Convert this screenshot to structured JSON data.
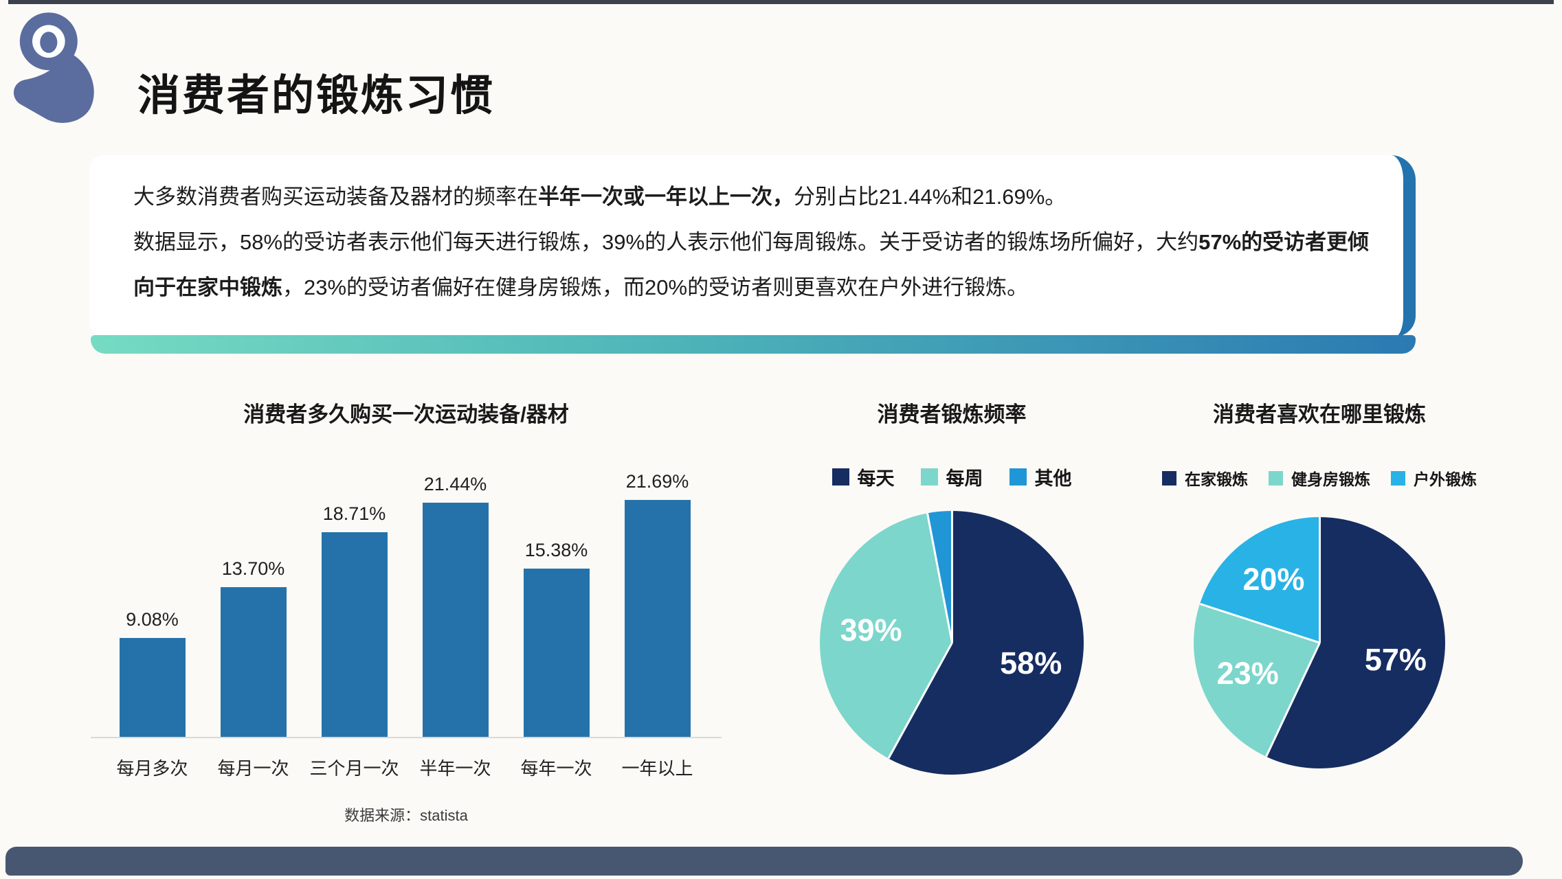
{
  "page": {
    "title": "消费者的锻炼习惯"
  },
  "summary": {
    "paragraphs": [
      {
        "segments": [
          {
            "t": "大多数消费者购买运动装备及器材的频率在",
            "b": 0
          },
          {
            "t": "半年一次或一年以上一次，",
            "b": 1
          },
          {
            "t": "分别占比21.44%和21.69%。",
            "b": 0
          }
        ]
      },
      {
        "segments": [
          {
            "t": "数据显示，58%的受访者表示他们每天进行锻炼，39%的人表示他们每周锻炼。关于受访者的锻炼场所偏好，大约",
            "b": 0
          },
          {
            "t": "57%的受访者更倾向于在家中锻炼",
            "b": 1
          },
          {
            "t": "，23%的受访者偏好在健身房锻炼，而20%的受访者则更喜欢在户外进行锻炼。",
            "b": 0
          }
        ]
      }
    ]
  },
  "chart_data": [
    {
      "type": "bar",
      "title": "消费者多久购买一次运动装备/器材",
      "categories": [
        "每月多次",
        "每月一次",
        "三个月一次",
        "半年一次",
        "每年一次",
        "一年以上"
      ],
      "values": [
        9.08,
        13.7,
        18.71,
        21.44,
        15.38,
        21.69
      ],
      "labels": [
        "9.08%",
        "13.70%",
        "18.71%",
        "21.44%",
        "15.38%",
        "21.69%"
      ],
      "ylim": [
        0,
        22
      ],
      "bar_color": "#2572aa",
      "grid": "off",
      "source": "数据来源：statista"
    },
    {
      "type": "pie",
      "title": "消费者锻炼频率",
      "legend_position": "top",
      "slices": [
        {
          "name": "每天",
          "value": 58,
          "label": "58%",
          "color": "#162d62"
        },
        {
          "name": "每周",
          "value": 39,
          "label": "39%",
          "color": "#7cd6cb"
        },
        {
          "name": "其他",
          "value": 3,
          "label": "",
          "color": "#2196d6"
        }
      ]
    },
    {
      "type": "pie",
      "title": "消费者喜欢在哪里锻炼",
      "legend_position": "top",
      "slices": [
        {
          "name": "在家锻炼",
          "value": 57,
          "label": "57%",
          "color": "#162d62"
        },
        {
          "name": "健身房锻炼",
          "value": 23,
          "label": "23%",
          "color": "#7cd6cb"
        },
        {
          "name": "户外锻炼",
          "value": 20,
          "label": "20%",
          "color": "#29b2e5"
        }
      ]
    }
  ],
  "colors": {
    "accent_blue": "#2373ae",
    "navy": "#162d62",
    "mint": "#7cd6cb",
    "cyan": "#29b2e5",
    "bar_blue": "#2572aa",
    "gradient_left": "#76dbc2",
    "gradient_right": "#2b7ab2",
    "footer": "#475671",
    "icon_slate": "#5a6d9e",
    "top_strip": "#3d414d"
  }
}
